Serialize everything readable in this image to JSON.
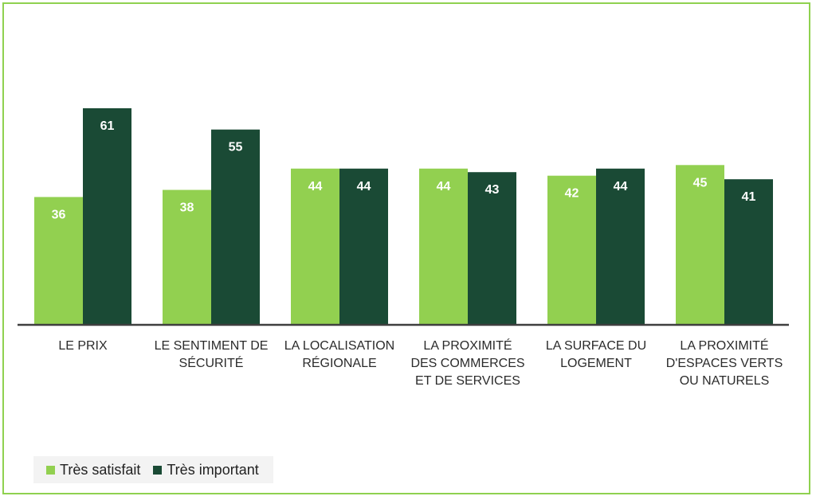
{
  "colors": {
    "frame": "#8fd14f",
    "series_light": "#92d050",
    "series_dark": "#1a4a35",
    "axis": "#3f3f3f"
  },
  "chart_data": {
    "type": "bar",
    "categories": [
      "LE PRIX",
      "LE SENTIMENT DE SÉCURITÉ",
      "LA LOCALISATION RÉGIONALE",
      "LA PROXIMITÉ DES COMMERCES ET DE SERVICES",
      "LA SURFACE DU LOGEMENT",
      "LA PROXIMITÉ D'ESPACES VERTS OU NATURELS"
    ],
    "category_lines": [
      [
        "LE PRIX"
      ],
      [
        "LE SENTIMENT DE",
        "SÉCURITÉ"
      ],
      [
        "LA LOCALISATION",
        "RÉGIONALE"
      ],
      [
        "LA PROXIMITÉ",
        "DES COMMERCES",
        "ET DE SERVICES"
      ],
      [
        "LA SURFACE DU",
        "LOGEMENT"
      ],
      [
        "LA PROXIMITÉ",
        "D'ESPACES VERTS",
        "OU NATURELS"
      ]
    ],
    "series": [
      {
        "name": "Très satisfait",
        "color": "#92d050",
        "values": [
          36,
          38,
          44,
          44,
          42,
          45
        ]
      },
      {
        "name": "Très important",
        "color": "#1a4a35",
        "values": [
          61,
          55,
          44,
          43,
          44,
          41
        ]
      }
    ],
    "ylim": [
      0,
      75
    ],
    "grid": false,
    "data_labels": true,
    "legend_position": "bottom-left"
  }
}
